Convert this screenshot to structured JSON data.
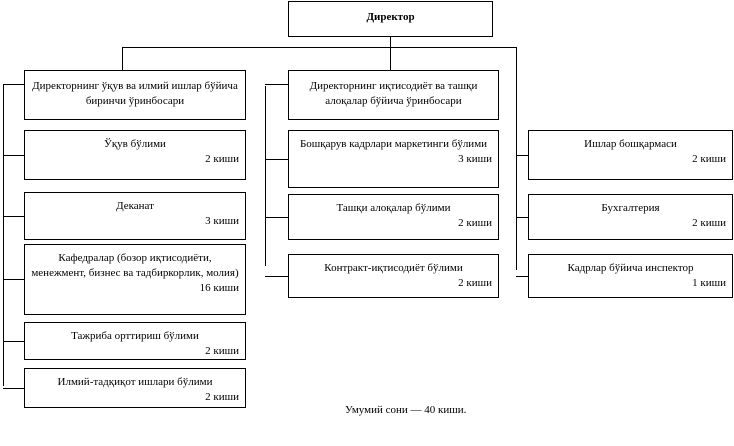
{
  "director": "Директор",
  "col1": [
    {
      "title": "Директорнинг ўқув ва илмий ишлар бўйича биринчи ўринбосари",
      "count": ""
    },
    {
      "title": "Ўқув бўлими",
      "count": "2 киши"
    },
    {
      "title": "Деканат",
      "count": "3 киши"
    },
    {
      "title": "Кафедралар (бозор иқтисодиёти, менежмент, бизнес ва тадбиркорлик, молия)",
      "count": "16 киши"
    },
    {
      "title": "Тажриба орттириш бўлими",
      "count": "2 киши"
    },
    {
      "title": "Илмий-тадқиқот ишлари бўлими",
      "count": "2 киши"
    }
  ],
  "col2": [
    {
      "title": "Директорнинг иқтисодиёт ва ташқи алоқалар бўйича ўринбосари",
      "count": ""
    },
    {
      "title": "Бошқарув кадрлари маркетинги бўлими",
      "count": "3 киши"
    },
    {
      "title": "Ташқи алоқалар бўлими",
      "count": "2 киши"
    },
    {
      "title": "Контракт-иқтисодиёт бўлими",
      "count": "2 киши"
    }
  ],
  "col3": [
    {
      "title": "Ишлар бошқармаси",
      "count": "2 киши"
    },
    {
      "title": "Бухгалтерия",
      "count": "2 киши"
    },
    {
      "title": "Кадрлар бўйича инспектор",
      "count": "1 киши"
    }
  ],
  "footer": "Умумий сони — 40 киши."
}
